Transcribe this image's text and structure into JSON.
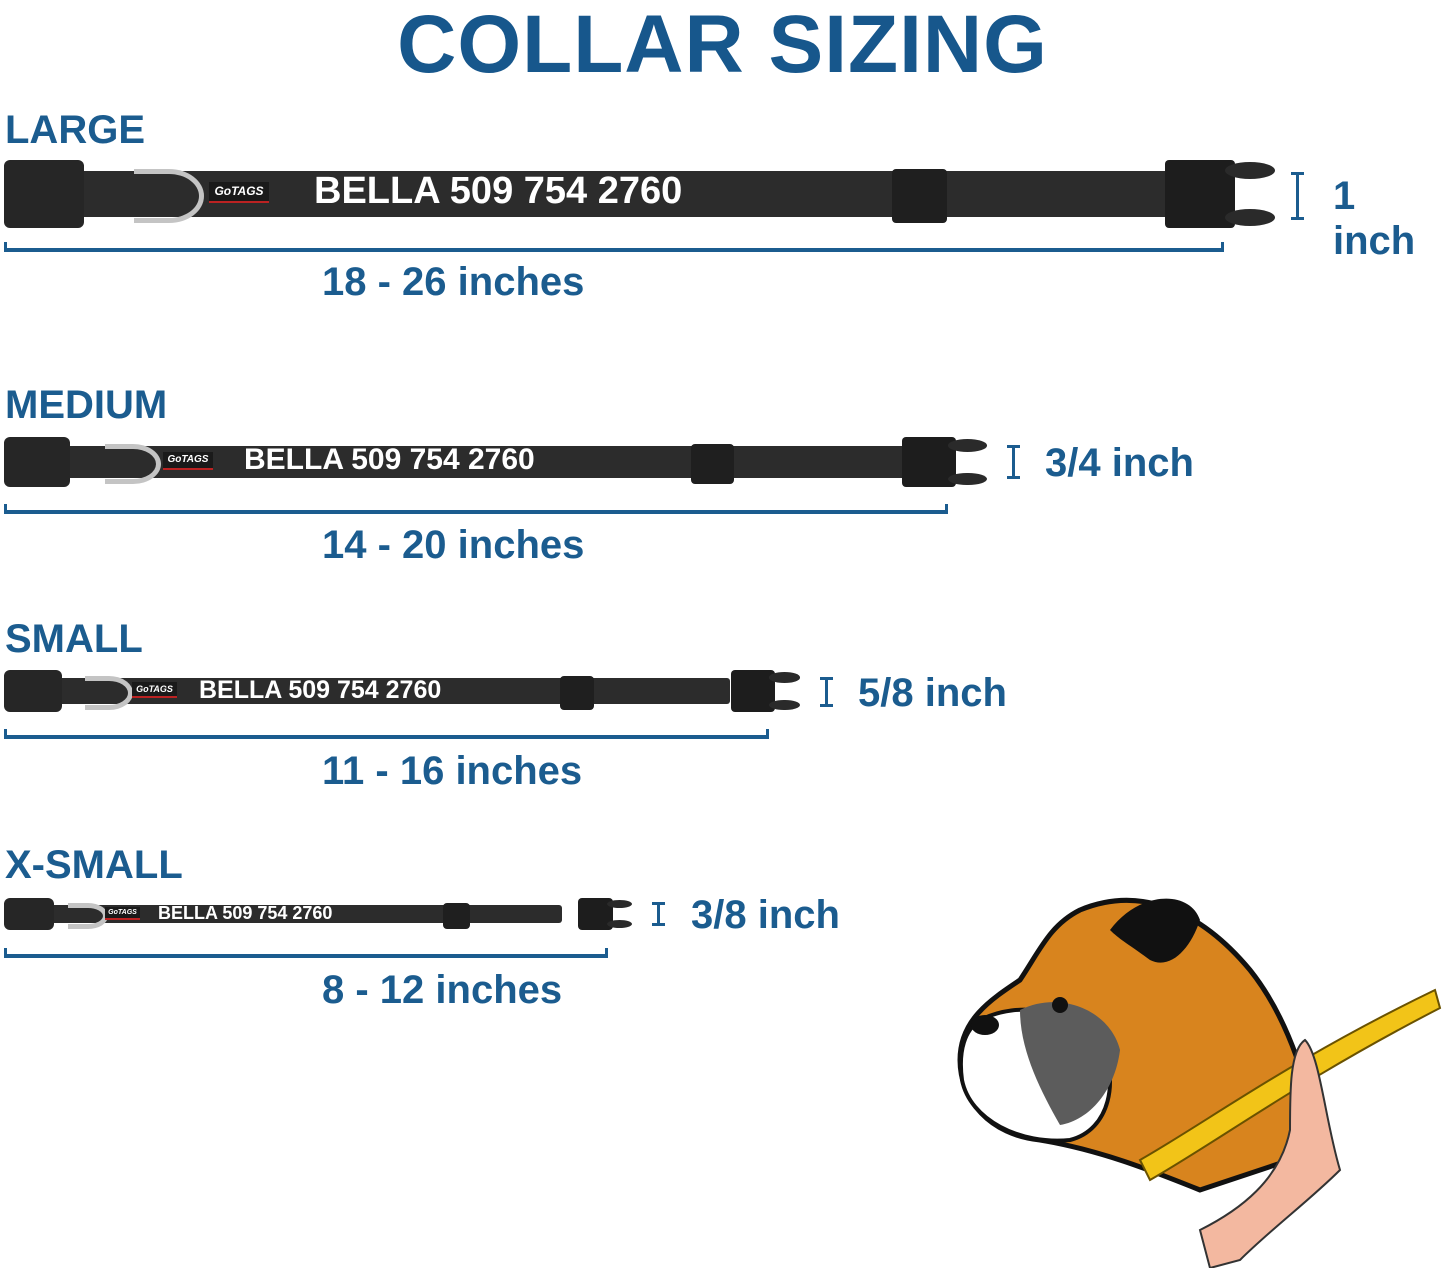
{
  "title": "COLLAR SIZING",
  "brand_logo": "GoTAGS",
  "engraving": "BELLA 509 754 2760",
  "colors": {
    "accent": "#1b5c8f",
    "collar": "#2c2c2c",
    "ring": "#c4c4c4"
  },
  "sizes": [
    {
      "name": "LARGE",
      "range": "18 - 26 inches",
      "width": "1 inch"
    },
    {
      "name": "MEDIUM",
      "range": "14 - 20 inches",
      "width": "3/4 inch"
    },
    {
      "name": "SMALL",
      "range": "11 - 16 inches",
      "width": "5/8 inch"
    },
    {
      "name": "X-SMALL",
      "range": "8 - 12 inches",
      "width": "3/8 inch"
    }
  ],
  "illustration": "boxer-dog-neck-measuring-icon"
}
